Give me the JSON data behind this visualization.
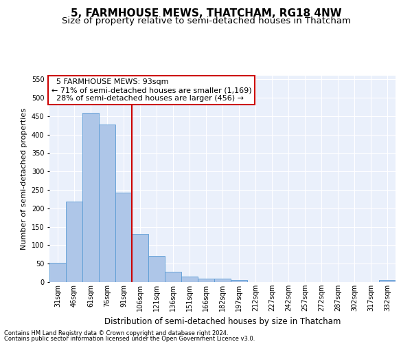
{
  "title": "5, FARMHOUSE MEWS, THATCHAM, RG18 4NW",
  "subtitle": "Size of property relative to semi-detached houses in Thatcham",
  "xlabel": "Distribution of semi-detached houses by size in Thatcham",
  "ylabel": "Number of semi-detached properties",
  "categories": [
    "31sqm",
    "46sqm",
    "61sqm",
    "76sqm",
    "91sqm",
    "106sqm",
    "121sqm",
    "136sqm",
    "151sqm",
    "166sqm",
    "182sqm",
    "197sqm",
    "212sqm",
    "227sqm",
    "242sqm",
    "257sqm",
    "272sqm",
    "287sqm",
    "302sqm",
    "317sqm",
    "332sqm"
  ],
  "values": [
    53,
    218,
    460,
    427,
    242,
    130,
    71,
    28,
    15,
    10,
    10,
    5,
    0,
    0,
    0,
    0,
    0,
    0,
    0,
    0,
    5
  ],
  "bar_color": "#aec6e8",
  "bar_edge_color": "#5a9bd5",
  "vline_color": "#cc0000",
  "vline_x": 4.5,
  "annotation_line1": "5 FARMHOUSE MEWS: 93sqm",
  "annotation_line2": "← 71% of semi-detached houses are smaller (1,169)",
  "annotation_line3": "28% of semi-detached houses are larger (456) →",
  "annotation_box_color": "#ffffff",
  "annotation_box_edge": "#cc0000",
  "ylim": [
    0,
    560
  ],
  "yticks": [
    0,
    50,
    100,
    150,
    200,
    250,
    300,
    350,
    400,
    450,
    500,
    550
  ],
  "bg_color": "#eaf0fb",
  "grid_color": "#ffffff",
  "footer_line1": "Contains HM Land Registry data © Crown copyright and database right 2024.",
  "footer_line2": "Contains public sector information licensed under the Open Government Licence v3.0.",
  "title_fontsize": 11,
  "subtitle_fontsize": 9.5,
  "ylabel_fontsize": 8,
  "xlabel_fontsize": 8.5,
  "annotation_fontsize": 8,
  "tick_fontsize": 7,
  "footer_fontsize": 6
}
